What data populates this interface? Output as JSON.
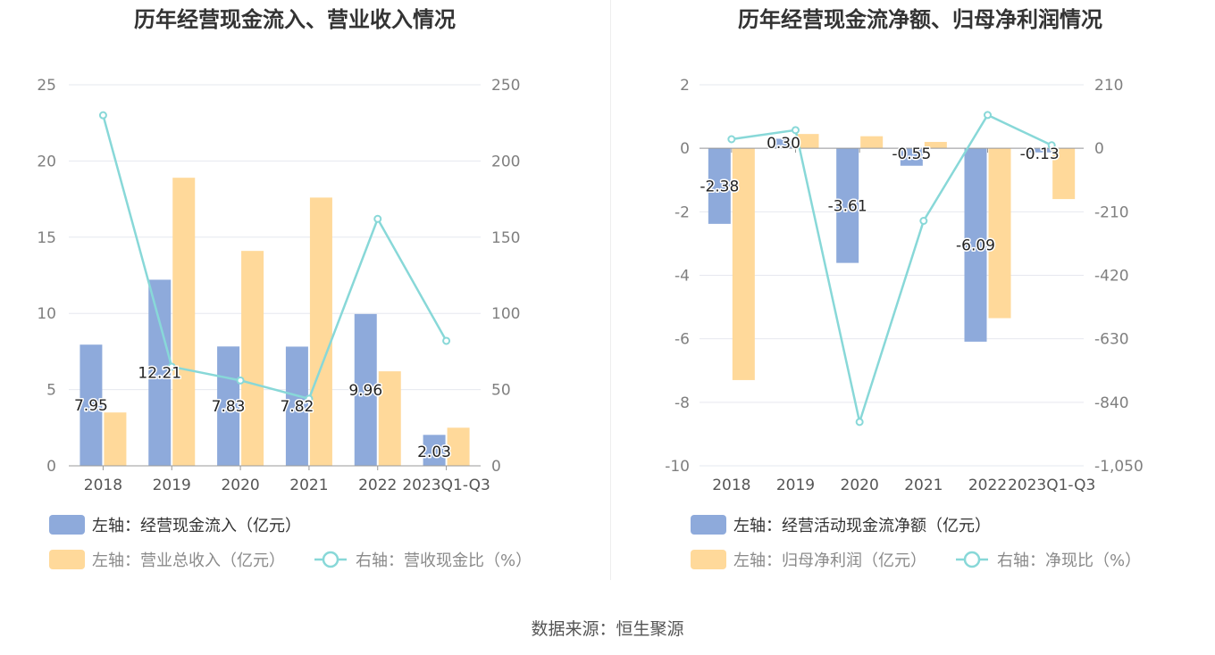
{
  "colors": {
    "bar1": "#8eaadb",
    "bar2": "#ffd99a",
    "line": "#88d8d8",
    "grid": "#e6e8ef",
    "axis": "#999999"
  },
  "source": "数据来源：恒生聚源",
  "chart_data": [
    {
      "type": "bar",
      "title": "历年经营现金流入、营业收入情况",
      "categories": [
        "2018",
        "2019",
        "2020",
        "2021",
        "2022",
        "2023Q1-Q3"
      ],
      "left_axis": {
        "min": 0,
        "max": 25,
        "ticks": [
          "0",
          "5",
          "10",
          "15",
          "20",
          "25"
        ]
      },
      "right_axis": {
        "min": 0,
        "max": 250,
        "ticks": [
          "0",
          "50",
          "100",
          "150",
          "200",
          "250"
        ]
      },
      "series": [
        {
          "name": "左轴：经营现金流入（亿元）",
          "kind": "bar",
          "axis": "left",
          "values": [
            7.95,
            12.21,
            7.83,
            7.82,
            9.96,
            2.03
          ],
          "labels": [
            "7.95",
            "12.21",
            "7.83",
            "7.82",
            "9.96",
            "2.03"
          ]
        },
        {
          "name": "左轴：营业总收入（亿元）",
          "kind": "bar",
          "axis": "left",
          "values": [
            3.5,
            18.9,
            14.1,
            17.6,
            6.2,
            2.5
          ]
        },
        {
          "name": "右轴：营收现金比（%）",
          "kind": "line",
          "axis": "right",
          "values": [
            230,
            65,
            56,
            44,
            162,
            82
          ]
        }
      ]
    },
    {
      "type": "bar",
      "title": "历年经营现金流净额、归母净利润情况",
      "categories": [
        "2018",
        "2019",
        "2020",
        "2021",
        "2022",
        "2023Q1-Q3"
      ],
      "left_axis": {
        "min": -10,
        "max": 2,
        "ticks": [
          "-10",
          "-8",
          "-6",
          "-4",
          "-2",
          "0",
          "2"
        ]
      },
      "right_axis": {
        "min": -1050,
        "max": 210,
        "ticks": [
          "-1,050",
          "-840",
          "-630",
          "-420",
          "-210",
          "0",
          "210"
        ]
      },
      "series": [
        {
          "name": "左轴：经营活动现金流净额（亿元）",
          "kind": "bar",
          "axis": "left",
          "values": [
            -2.38,
            0.3,
            -3.61,
            -0.55,
            -6.09,
            -0.13
          ],
          "labels": [
            "-2.38",
            "0.30",
            "-3.61",
            "-0.55",
            "-6.09",
            "-0.13"
          ]
        },
        {
          "name": "左轴：归母净利润（亿元）",
          "kind": "bar",
          "axis": "left",
          "values": [
            -7.3,
            0.45,
            0.38,
            0.2,
            -5.35,
            -1.6
          ]
        },
        {
          "name": "右轴：净现比（%）",
          "kind": "line",
          "axis": "right",
          "values": [
            30,
            60,
            -905,
            -240,
            110,
            10
          ]
        }
      ]
    }
  ]
}
